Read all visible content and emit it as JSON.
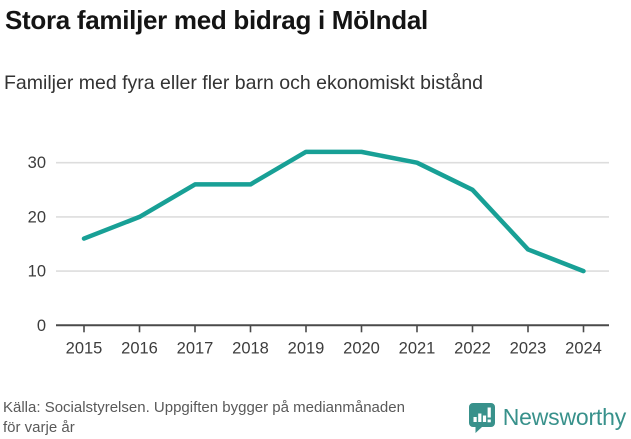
{
  "header": {
    "title": "Stora familjer med bidrag i Mölndal",
    "subtitle": "Familjer med fyra eller fler barn och ekonomiskt bistånd"
  },
  "footer": {
    "source_line1": "Källa: Socialstyrelsen. Uppgiften bygger på medianmånaden",
    "source_line2": "för varje år",
    "brand_name": "Newsworthy"
  },
  "colors": {
    "line": "#18a096",
    "gridline": "#dddddd",
    "axis": "#4a4a4a",
    "tick_label": "#3d3d3d",
    "brand_teal": "#38918b"
  },
  "chart_data": {
    "type": "line",
    "title": "Stora familjer med bidrag i Mölndal",
    "subtitle": "Familjer med fyra eller fler barn och ekonomiskt bistånd",
    "x": [
      2015,
      2016,
      2017,
      2018,
      2019,
      2020,
      2021,
      2022,
      2023,
      2024
    ],
    "series": [
      {
        "name": "Familjer med fyra eller fler barn och ekonomiskt bistånd",
        "values": [
          16,
          20,
          26,
          26,
          32,
          32,
          30,
          25,
          14,
          10
        ]
      }
    ],
    "xlabel": "",
    "ylabel": "",
    "yticks": [
      0,
      10,
      20,
      30
    ],
    "ylim": [
      0,
      34
    ],
    "grid": true,
    "legend": "none"
  }
}
